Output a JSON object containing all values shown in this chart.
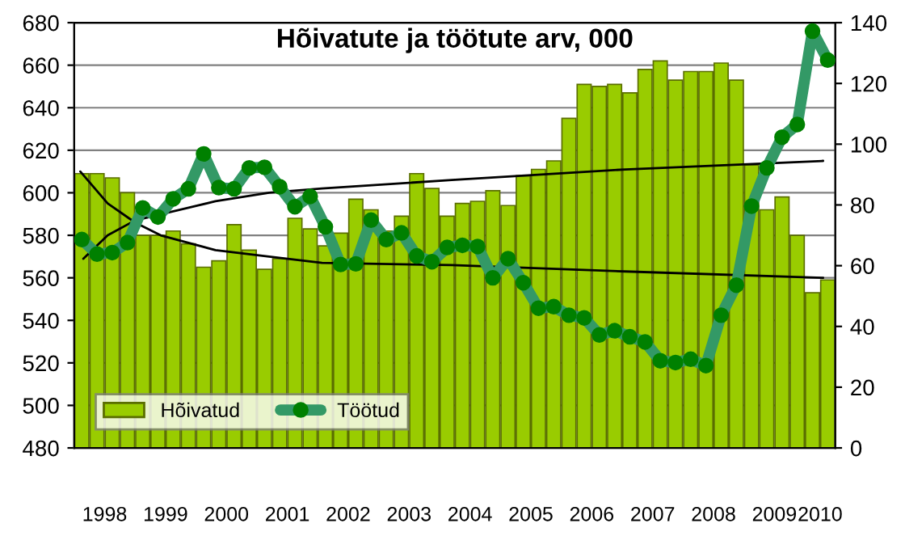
{
  "chart_data": {
    "type": "bar",
    "title": "Hõivatute ja töötute arv, 000",
    "x": [
      1998.125,
      1998.375,
      1998.625,
      1998.875,
      1999.125,
      1999.375,
      1999.625,
      1999.875,
      2000.125,
      2000.375,
      2000.625,
      2000.875,
      2001.125,
      2001.375,
      2001.625,
      2001.875,
      2002.125,
      2002.375,
      2002.625,
      2002.875,
      2003.125,
      2003.375,
      2003.625,
      2003.875,
      2004.125,
      2004.375,
      2004.625,
      2004.875,
      2005.125,
      2005.375,
      2005.625,
      2005.875,
      2006.125,
      2006.375,
      2006.625,
      2006.875,
      2007.125,
      2007.375,
      2007.625,
      2007.875,
      2008.125,
      2008.375,
      2008.625,
      2008.875,
      2009.125,
      2009.375,
      2009.625,
      2009.875,
      2010.125,
      2010.375
    ],
    "xlim": [
      1998,
      2010.5
    ],
    "xticks": [
      {
        "value": 1998.5,
        "label": "1998"
      },
      {
        "value": 1999.5,
        "label": "1999"
      },
      {
        "value": 2000.5,
        "label": "2000"
      },
      {
        "value": 2001.5,
        "label": "2001"
      },
      {
        "value": 2002.5,
        "label": "2002"
      },
      {
        "value": 2003.5,
        "label": "2003"
      },
      {
        "value": 2004.5,
        "label": "2004"
      },
      {
        "value": 2005.5,
        "label": "2005"
      },
      {
        "value": 2006.5,
        "label": "2006"
      },
      {
        "value": 2007.5,
        "label": "2007"
      },
      {
        "value": 2008.5,
        "label": "2008"
      },
      {
        "value": 2009.5,
        "label": "2009"
      },
      {
        "value": 2010.25,
        "label": "2010"
      }
    ],
    "ylim": [
      480,
      680
    ],
    "yticks": [
      480,
      500,
      520,
      540,
      560,
      580,
      600,
      620,
      640,
      660,
      680
    ],
    "y2lim": [
      0,
      140
    ],
    "y2ticks": [
      0,
      20,
      40,
      60,
      80,
      100,
      120,
      140
    ],
    "grid": "y",
    "legend": "bottom left",
    "series": [
      {
        "name": "Hõivatud",
        "color": "#99cc00",
        "values": [
          609,
          609,
          607,
          600,
          580,
          580,
          582,
          576,
          565,
          568,
          585,
          573,
          564,
          569,
          588,
          583,
          575,
          581,
          597,
          592,
          582,
          589,
          609,
          602,
          589,
          595,
          596,
          601,
          594,
          608,
          611,
          615,
          635,
          651,
          650,
          651,
          647,
          658,
          662,
          653,
          657,
          657,
          661,
          653,
          613,
          592,
          598,
          580,
          553,
          559
        ]
      },
      {
        "name": "Töötud",
        "type": "line",
        "axis": "y2",
        "color": "#339966",
        "marker": "circle",
        "values": [
          68.6,
          63.8,
          64.3,
          67.6,
          79,
          76,
          82,
          85.3,
          96.8,
          85.7,
          85.3,
          92.2,
          92.4,
          86,
          79.4,
          82.8,
          72.8,
          60.4,
          60.6,
          75,
          68.6,
          70.8,
          63.2,
          61.3,
          66,
          66.7,
          66.3,
          56,
          62.3,
          54.4,
          46,
          46.5,
          43.7,
          42.8,
          37.2,
          38.6,
          36.6,
          34.9,
          28.7,
          28.1,
          29.2,
          27.1,
          43.7,
          53.6,
          79.6,
          92.2,
          102.3,
          106.5,
          137.2,
          127.7
        ]
      },
      {
        "type": "line",
        "color": "#000000",
        "x": [
          1998.1,
          1998.55,
          1999.0,
          1999.42,
          2000.32,
          2001.2,
          2002.07,
          2004.2,
          2007.05,
          2010.3
        ],
        "values": [
          610,
          595,
          586,
          580,
          573,
          570,
          567,
          566,
          563,
          560
        ]
      },
      {
        "type": "line",
        "color": "#000000",
        "x": [
          1998.15,
          1998.55,
          1999.0,
          2000.32,
          2001.2,
          2002.07,
          2004.2,
          2007.05,
          2010.3
        ],
        "values": [
          569,
          580,
          587,
          596,
          600,
          602,
          606,
          611,
          615
        ]
      }
    ]
  }
}
